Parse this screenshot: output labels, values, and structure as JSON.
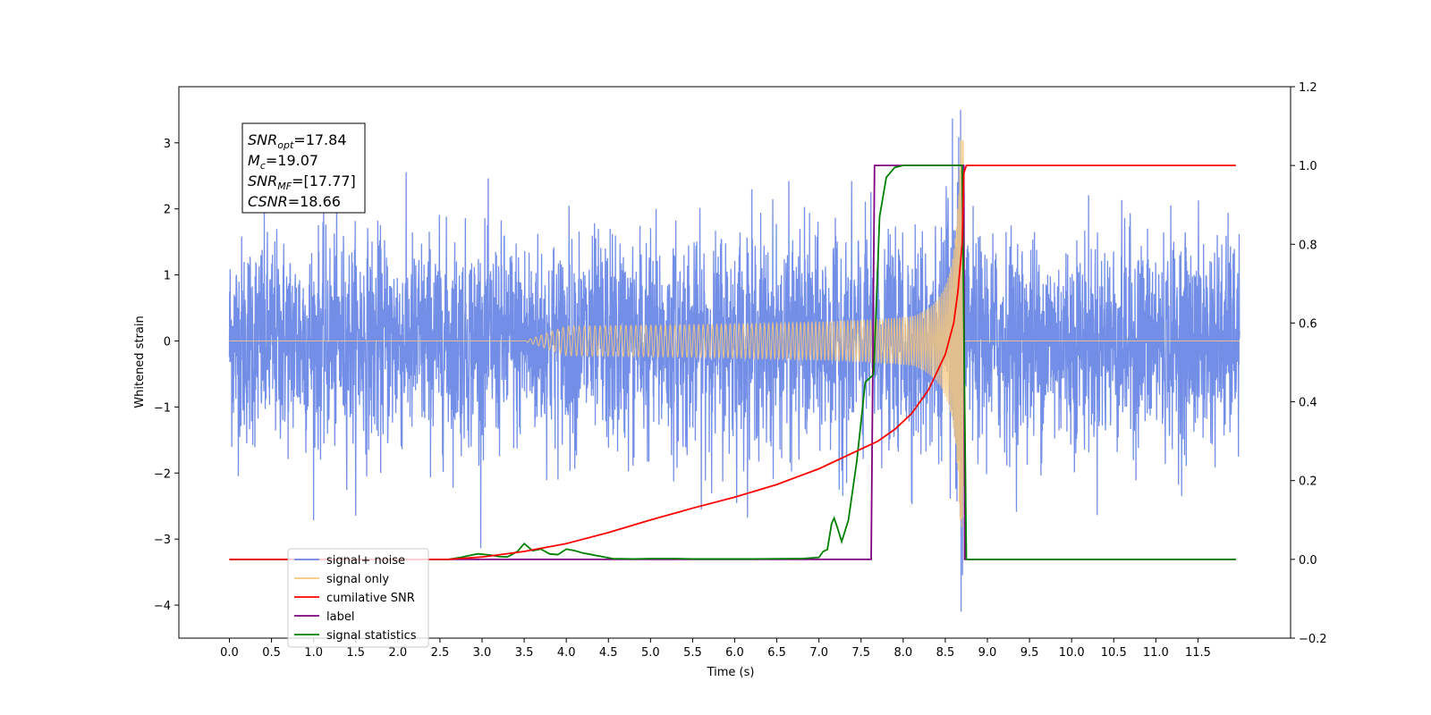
{
  "chart_data": {
    "type": "line",
    "xlabel": "Time (s)",
    "ylabel_left": "Whitened strain",
    "ylabel_right": "",
    "xlim": [
      -0.6,
      12.6
    ],
    "ylim_left": [
      -4.5,
      3.85
    ],
    "ylim_right": [
      -0.2,
      1.2
    ],
    "x_ticks": [
      "0.0",
      "0.5",
      "1.0",
      "1.5",
      "2.0",
      "2.5",
      "3.0",
      "3.5",
      "4.0",
      "4.5",
      "5.0",
      "5.5",
      "6.0",
      "6.5",
      "7.0",
      "7.5",
      "8.0",
      "8.5",
      "9.0",
      "9.5",
      "10.0",
      "10.5",
      "11.0",
      "11.5"
    ],
    "y_ticks_left": [
      "3",
      "2",
      "1",
      "0",
      "−1",
      "−2",
      "−3",
      "−4"
    ],
    "y_ticks_right": [
      "1.2",
      "1.0",
      "0.8",
      "0.6",
      "0.4",
      "0.2",
      "0.0",
      "−0.2"
    ],
    "grid": false,
    "legend_position": "lower-left",
    "annotation": {
      "lines": [
        {
          "sym": "SNR",
          "sub": "opt",
          "val": "=17.84"
        },
        {
          "sym": "M",
          "sub": "c",
          "val": "=19.07"
        },
        {
          "sym": "SNR",
          "sub": "MF",
          "val": "=[17.77]"
        },
        {
          "sym": "CSNR",
          "sub": "",
          "val": "=18.66"
        }
      ]
    },
    "series": [
      {
        "name": "signal+ noise",
        "axis": "left",
        "color": "#6b88e6",
        "x_range": [
          0,
          11.995
        ],
        "description_values": {
          "noise_amplitude_range": [
            -4.1,
            3.5
          ]
        }
      },
      {
        "name": "signal only",
        "axis": "left",
        "color": "#f5c77e",
        "chirp_window": [
          3.5,
          8.72
        ],
        "peak_amplitude": 3.05
      },
      {
        "name": "cumilative SNR",
        "axis": "right",
        "color": "#ff0000",
        "x": [
          0,
          2.6,
          3.0,
          3.5,
          4.0,
          4.5,
          5.0,
          5.5,
          6.0,
          6.5,
          7.0,
          7.5,
          7.7,
          7.9,
          8.1,
          8.3,
          8.5,
          8.6,
          8.65,
          8.7,
          8.72,
          8.75,
          11.0,
          11.95
        ],
        "y": [
          0,
          0,
          0.006,
          0.02,
          0.04,
          0.068,
          0.1,
          0.13,
          0.158,
          0.19,
          0.23,
          0.28,
          0.3,
          0.33,
          0.37,
          0.43,
          0.52,
          0.6,
          0.68,
          0.8,
          0.98,
          1.0,
          1.0,
          1.0
        ]
      },
      {
        "name": "label",
        "axis": "right",
        "color": "#800080",
        "x": [
          0,
          7.62,
          7.66,
          8.72,
          8.73,
          11.95
        ],
        "y": [
          0,
          0,
          1,
          1,
          0,
          0
        ]
      },
      {
        "name": "signal statistics",
        "axis": "right",
        "color": "#008000",
        "x": [
          0,
          2.6,
          2.75,
          2.85,
          2.95,
          3.1,
          3.2,
          3.3,
          3.42,
          3.5,
          3.6,
          3.7,
          3.8,
          3.9,
          4.0,
          4.1,
          4.2,
          4.3,
          4.35,
          4.45,
          4.55,
          4.8,
          5.0,
          5.3,
          5.5,
          6.2,
          6.8,
          7.0,
          7.05,
          7.1,
          7.15,
          7.18,
          7.22,
          7.27,
          7.35,
          7.45,
          7.55,
          7.65,
          7.72,
          7.8,
          7.9,
          8.0,
          8.2,
          8.7,
          8.75,
          11.95
        ],
        "y": [
          0,
          0,
          0.005,
          0.01,
          0.014,
          0.011,
          0.007,
          0.006,
          0.02,
          0.04,
          0.022,
          0.026,
          0.014,
          0.012,
          0.026,
          0.022,
          0.016,
          0.012,
          0.01,
          0.006,
          0.002,
          0.001,
          0.002,
          0.002,
          0.001,
          0.001,
          0.002,
          0.005,
          0.02,
          0.025,
          0.09,
          0.105,
          0.08,
          0.045,
          0.1,
          0.25,
          0.45,
          0.47,
          0.87,
          0.97,
          0.995,
          1.0,
          1.0,
          1.0,
          0,
          0
        ]
      }
    ]
  }
}
